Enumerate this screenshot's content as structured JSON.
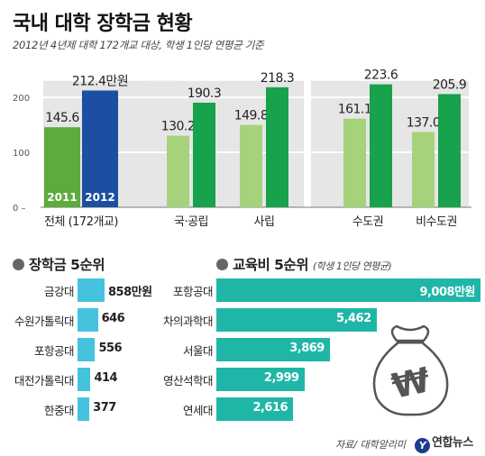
{
  "title": "국내 대학 장학금 현황",
  "subtitle": "2012년 4년제 대학 172개교 대상, 학생 1인당 연평균 기준",
  "chart_data": [
    {
      "type": "bar",
      "unit": "만원",
      "categories": [
        "전체 (172개교)",
        "국·공립",
        "사립",
        "수도권",
        "비수도권"
      ],
      "series": [
        {
          "name": "2011",
          "values": [
            145.6,
            130.2,
            149.8,
            161.1,
            137.0
          ],
          "labels": [
            "145.6",
            "130.2",
            "149.8",
            "161.1",
            "137.0"
          ]
        },
        {
          "name": "2012",
          "values": [
            212.4,
            190.3,
            218.3,
            223.6,
            205.9
          ],
          "labels": [
            "212.4만원",
            "190.3",
            "218.3",
            "223.6",
            "205.9"
          ]
        }
      ],
      "yticks": [
        0,
        100,
        200
      ],
      "ylim": [
        0,
        230
      ],
      "colors": {
        "2011_total": "#5dab3c",
        "2012_total": "#1c4fa1",
        "2011": "#a6d27b",
        "2012": "#17a24b"
      }
    },
    {
      "type": "bar",
      "orientation": "horizontal",
      "title": "장학금 5순위",
      "categories": [
        "금강대",
        "수원가톨릭대",
        "포항공대",
        "대전가톨릭대",
        "한중대"
      ],
      "values": [
        858,
        646,
        556,
        414,
        377
      ],
      "labels": [
        "858만원",
        "646",
        "556",
        "414",
        "377"
      ],
      "color": "#45c3de"
    },
    {
      "type": "bar",
      "orientation": "horizontal",
      "title": "교육비 5순위",
      "note": "(학생 1인당 연평균)",
      "categories": [
        "포항공대",
        "차의과학대",
        "서울대",
        "영산석학대",
        "연세대"
      ],
      "values": [
        9008,
        5462,
        3869,
        2999,
        2616
      ],
      "labels": [
        "9,008만원",
        "5,462",
        "3,869",
        "2,999",
        "2,616"
      ],
      "color": "#1fb6a8"
    }
  ],
  "source": "자료/ 대학알리미",
  "logo": {
    "mark": "Y",
    "text": "연합뉴스"
  },
  "moneybag_symbol": "₩",
  "icon_names": [
    "bullet-dot-icon",
    "money-bag-icon",
    "yonhap-logo-icon"
  ]
}
